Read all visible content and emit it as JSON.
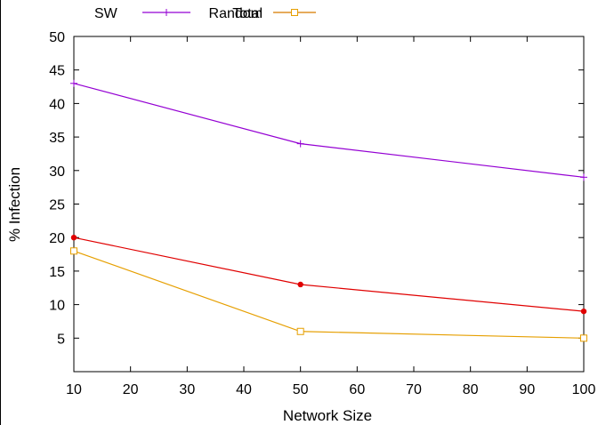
{
  "chart_data": {
    "type": "line",
    "title": "",
    "xlabel": "Network Size",
    "ylabel": "% Infection",
    "xlim": [
      10,
      100
    ],
    "ylim": [
      0,
      50
    ],
    "xticks": [
      10,
      20,
      30,
      40,
      50,
      60,
      70,
      80,
      90,
      100
    ],
    "yticks": [
      5,
      10,
      15,
      20,
      25,
      30,
      35,
      40,
      45,
      50
    ],
    "grid": false,
    "legend_position": "top",
    "legend_prefix": "SW",
    "series": [
      {
        "name": "Total",
        "color": "#9400d3",
        "marker": "plus",
        "x": [
          10,
          50,
          100
        ],
        "y": [
          43,
          34,
          29
        ]
      },
      {
        "name": "Random",
        "color": "#e69f00",
        "marker": "open-square",
        "x": [
          10,
          50,
          100
        ],
        "y": [
          18,
          6,
          5
        ]
      },
      {
        "name": "",
        "color": "#e00000",
        "marker": "filled-circle",
        "x": [
          10,
          50,
          100
        ],
        "y": [
          20,
          13,
          9
        ]
      }
    ]
  }
}
